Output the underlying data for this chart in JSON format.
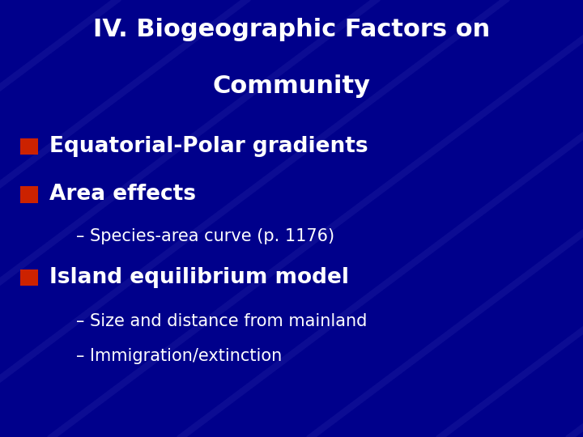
{
  "title_line1": "IV. Biogeographic Factors on",
  "title_line2": "Community",
  "bg_color": "#00008B",
  "title_color": "#FFFFFF",
  "bullet_color": "#CC2200",
  "text_color": "#FFFFFF",
  "bullet1": "Equatorial-Polar gradients",
  "bullet2": "Area effects",
  "sub_bullet1": "– Species-area curve (p. 1176)",
  "bullet3": "Island equilibrium model",
  "sub_bullet2": "– Size and distance from mainland",
  "sub_bullet3": "– Immigration/extinction",
  "title_fontsize": 22,
  "bullet_fontsize": 19,
  "sub_bullet_fontsize": 15
}
